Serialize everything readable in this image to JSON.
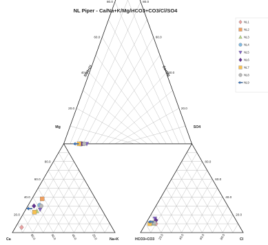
{
  "chart_data": {
    "type": "scatter",
    "diagram": "piper",
    "title": "NL Piper - Ca/Na+K/Mg/HCO3+CO3/Cl/SO4",
    "cation_triangle": {
      "corners": {
        "left": "Ca",
        "right": "Na+K",
        "top": "Mg"
      },
      "tick_labels_bottom": [
        "80.0",
        "60.0",
        "40.0",
        "20.0"
      ],
      "tick_labels_left": [
        "20.0",
        "40.0",
        "60.0",
        "80.0"
      ]
    },
    "anion_triangle": {
      "corners": {
        "left": "HCO3+CO3",
        "right": "Cl",
        "top": "SO4"
      },
      "tick_labels_bottom": [
        "20.0",
        "40.0",
        "60.0",
        "80.0"
      ],
      "tick_labels_right": [
        "20.0",
        "40.0",
        "60.0",
        "80.0"
      ]
    },
    "diamond": {
      "left_axis_label": "SO4+Cl",
      "right_axis_label": "Ca+Mg",
      "tick_labels_left": [
        "20.0",
        "40.0",
        "60.0",
        "80.0"
      ],
      "tick_labels_right": [
        "80.0",
        "60.0",
        "40.0",
        "20.0"
      ]
    },
    "grid": true,
    "legend_position": "top-right",
    "series": [
      {
        "name": "NL1",
        "marker": "diamond",
        "color": "#e8a0a0",
        "cation": {
          "Ca": 88,
          "Mg": 6,
          "NaK": 6
        },
        "anion": {
          "HCO3": 80,
          "Cl": 10,
          "SO4": 10
        }
      },
      {
        "name": "NL2",
        "marker": "square",
        "color": "#f0a060",
        "cation": {
          "Ca": 52,
          "Mg": 38,
          "NaK": 10
        },
        "anion": {
          "HCO3": 83,
          "Cl": 6,
          "SO4": 11
        }
      },
      {
        "name": "NL3",
        "marker": "triangle",
        "color": "#b8d880",
        "cation": {
          "Ca": 64,
          "Mg": 24,
          "NaK": 12
        },
        "anion": {
          "HCO3": 82,
          "Cl": 8,
          "SO4": 10
        }
      },
      {
        "name": "NL4",
        "marker": "circle",
        "color": "#80b8e0",
        "cation": {
          "Ca": 58,
          "Mg": 31,
          "NaK": 11
        },
        "anion": {
          "HCO3": 84,
          "Cl": 5,
          "SO4": 11
        }
      },
      {
        "name": "NL5",
        "marker": "triangle-down",
        "color": "#8060c8",
        "cation": {
          "Ca": 60,
          "Mg": 26,
          "NaK": 14
        },
        "anion": {
          "HCO3": 78,
          "Cl": 6,
          "SO4": 16
        }
      },
      {
        "name": "NL6",
        "marker": "diamond",
        "color": "#603090",
        "cation": {
          "Ca": 64,
          "Mg": 30,
          "NaK": 6
        },
        "anion": {
          "HCO3": 78,
          "Cl": 8,
          "SO4": 14
        }
      },
      {
        "name": "NL7",
        "marker": "square",
        "color": "#f8c050",
        "cation": {
          "Ca": 67,
          "Mg": 23,
          "NaK": 10
        },
        "anion": {
          "HCO3": 86,
          "Cl": 4,
          "SO4": 10
        }
      },
      {
        "name": "NL8",
        "marker": "circle",
        "color": "#b8b8b8",
        "cation": {
          "Ca": 57,
          "Mg": 30,
          "NaK": 13
        },
        "anion": {
          "HCO3": 81,
          "Cl": 8,
          "SO4": 11
        }
      },
      {
        "name": "NL9",
        "marker": "arrow",
        "color": "#3070c0",
        "cation": {
          "Ca": 70,
          "Mg": 27,
          "NaK": 3
        },
        "anion": {
          "HCO3": 84,
          "Cl": 4,
          "SO4": 12
        }
      }
    ]
  }
}
